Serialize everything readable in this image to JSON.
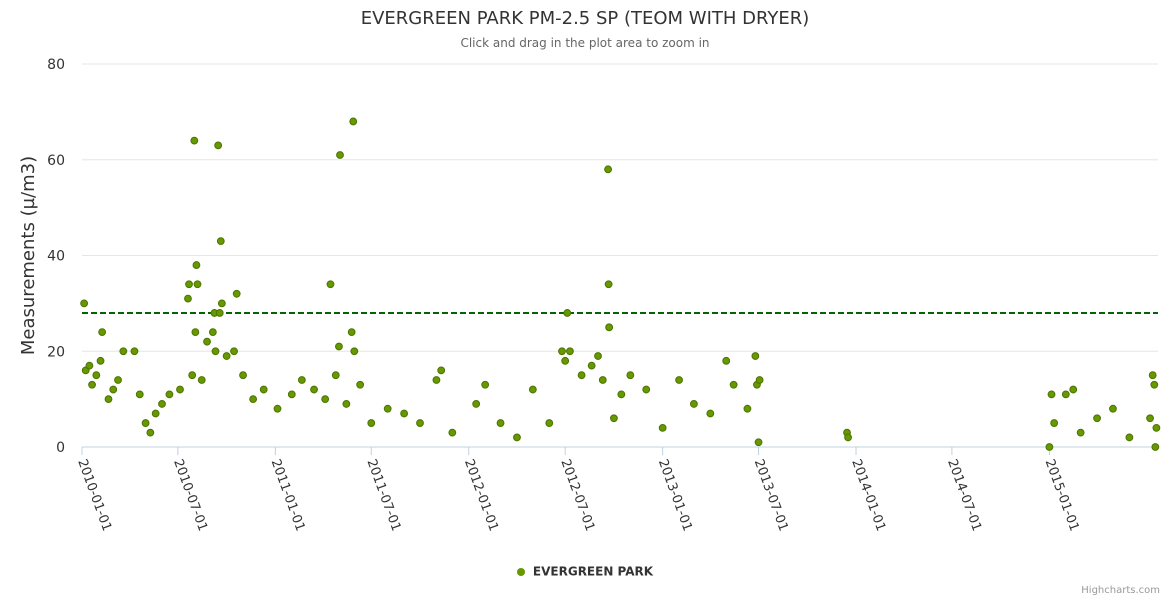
{
  "chart_data": {
    "type": "scatter",
    "title": "EVERGREEN PARK PM-2.5 SP (TEOM WITH DRYER)",
    "subtitle": "Click and drag in the plot area to zoom in",
    "ylabel": "Measurements (µ/m3)",
    "ylim": [
      0,
      80
    ],
    "y_ticks": [
      0,
      20,
      40,
      60,
      80
    ],
    "x_start": "2010-01-01",
    "x_end": "2015-07-25",
    "x_ticks": [
      "2010-01-01",
      "2010-07-01",
      "2011-01-01",
      "2011-07-01",
      "2012-01-01",
      "2012-07-01",
      "2013-01-01",
      "2013-07-01",
      "2014-01-01",
      "2014-07-01",
      "2015-01-01"
    ],
    "threshold": 28,
    "threshold_color": "#006600",
    "series": [
      {
        "name": "EVERGREEN PARK",
        "color": "#669900",
        "outline": "#4d7300",
        "points": [
          [
            "2010-01-05",
            30
          ],
          [
            "2010-01-08",
            16
          ],
          [
            "2010-01-15",
            17
          ],
          [
            "2010-01-20",
            13
          ],
          [
            "2010-01-28",
            15
          ],
          [
            "2010-02-05",
            18
          ],
          [
            "2010-02-08",
            24
          ],
          [
            "2010-02-20",
            10
          ],
          [
            "2010-03-01",
            12
          ],
          [
            "2010-03-10",
            14
          ],
          [
            "2010-03-20",
            20
          ],
          [
            "2010-04-10",
            20
          ],
          [
            "2010-04-20",
            11
          ],
          [
            "2010-05-01",
            5
          ],
          [
            "2010-05-10",
            3
          ],
          [
            "2010-05-20",
            7
          ],
          [
            "2010-06-01",
            9
          ],
          [
            "2010-06-15",
            11
          ],
          [
            "2010-07-05",
            12
          ],
          [
            "2010-07-20",
            31
          ],
          [
            "2010-07-22",
            34
          ],
          [
            "2010-07-28",
            15
          ],
          [
            "2010-08-01",
            64
          ],
          [
            "2010-08-03",
            24
          ],
          [
            "2010-08-05",
            38
          ],
          [
            "2010-08-07",
            34
          ],
          [
            "2010-08-15",
            14
          ],
          [
            "2010-08-25",
            22
          ],
          [
            "2010-09-05",
            24
          ],
          [
            "2010-09-08",
            28
          ],
          [
            "2010-09-10",
            20
          ],
          [
            "2010-09-15",
            63
          ],
          [
            "2010-09-18",
            28
          ],
          [
            "2010-09-20",
            43
          ],
          [
            "2010-09-22",
            30
          ],
          [
            "2010-10-01",
            19
          ],
          [
            "2010-10-15",
            20
          ],
          [
            "2010-10-20",
            32
          ],
          [
            "2010-11-01",
            15
          ],
          [
            "2010-11-20",
            10
          ],
          [
            "2010-12-10",
            12
          ],
          [
            "2011-01-05",
            8
          ],
          [
            "2011-02-01",
            11
          ],
          [
            "2011-02-20",
            14
          ],
          [
            "2011-03-15",
            12
          ],
          [
            "2011-04-05",
            10
          ],
          [
            "2011-04-15",
            34
          ],
          [
            "2011-04-25",
            15
          ],
          [
            "2011-05-01",
            21
          ],
          [
            "2011-05-03",
            61
          ],
          [
            "2011-05-15",
            9
          ],
          [
            "2011-05-25",
            24
          ],
          [
            "2011-05-28",
            68
          ],
          [
            "2011-05-30",
            20
          ],
          [
            "2011-06-10",
            13
          ],
          [
            "2011-07-01",
            5
          ],
          [
            "2011-08-01",
            8
          ],
          [
            "2011-09-01",
            7
          ],
          [
            "2011-10-01",
            5
          ],
          [
            "2011-11-01",
            14
          ],
          [
            "2011-11-10",
            16
          ],
          [
            "2011-12-01",
            3
          ],
          [
            "2012-01-15",
            9
          ],
          [
            "2012-02-01",
            13
          ],
          [
            "2012-03-01",
            5
          ],
          [
            "2012-04-01",
            2
          ],
          [
            "2012-05-01",
            12
          ],
          [
            "2012-06-01",
            5
          ],
          [
            "2012-06-25",
            20
          ],
          [
            "2012-07-01",
            18
          ],
          [
            "2012-07-05",
            28
          ],
          [
            "2012-07-10",
            20
          ],
          [
            "2012-08-01",
            15
          ],
          [
            "2012-08-20",
            17
          ],
          [
            "2012-09-01",
            19
          ],
          [
            "2012-09-10",
            14
          ],
          [
            "2012-09-20",
            58
          ],
          [
            "2012-09-21",
            34
          ],
          [
            "2012-09-22",
            25
          ],
          [
            "2012-10-01",
            6
          ],
          [
            "2012-10-15",
            11
          ],
          [
            "2012-11-01",
            15
          ],
          [
            "2012-12-01",
            12
          ],
          [
            "2013-01-01",
            4
          ],
          [
            "2013-02-01",
            14
          ],
          [
            "2013-03-01",
            9
          ],
          [
            "2013-04-01",
            7
          ],
          [
            "2013-05-01",
            18
          ],
          [
            "2013-05-15",
            13
          ],
          [
            "2013-06-10",
            8
          ],
          [
            "2013-06-25",
            19
          ],
          [
            "2013-06-28",
            13
          ],
          [
            "2013-07-01",
            1
          ],
          [
            "2013-07-03",
            14
          ],
          [
            "2013-12-15",
            3
          ],
          [
            "2013-12-17",
            2
          ],
          [
            "2015-01-01",
            0
          ],
          [
            "2015-01-05",
            11
          ],
          [
            "2015-01-10",
            5
          ],
          [
            "2015-02-01",
            11
          ],
          [
            "2015-02-15",
            12
          ],
          [
            "2015-03-01",
            3
          ],
          [
            "2015-04-01",
            6
          ],
          [
            "2015-05-01",
            8
          ],
          [
            "2015-06-01",
            2
          ],
          [
            "2015-07-10",
            6
          ],
          [
            "2015-07-15",
            15
          ],
          [
            "2015-07-18",
            13
          ],
          [
            "2015-07-20",
            0
          ],
          [
            "2015-07-22",
            4
          ]
        ]
      }
    ],
    "legend": {
      "position": "bottom-center"
    }
  },
  "credits": "Highcharts.com"
}
